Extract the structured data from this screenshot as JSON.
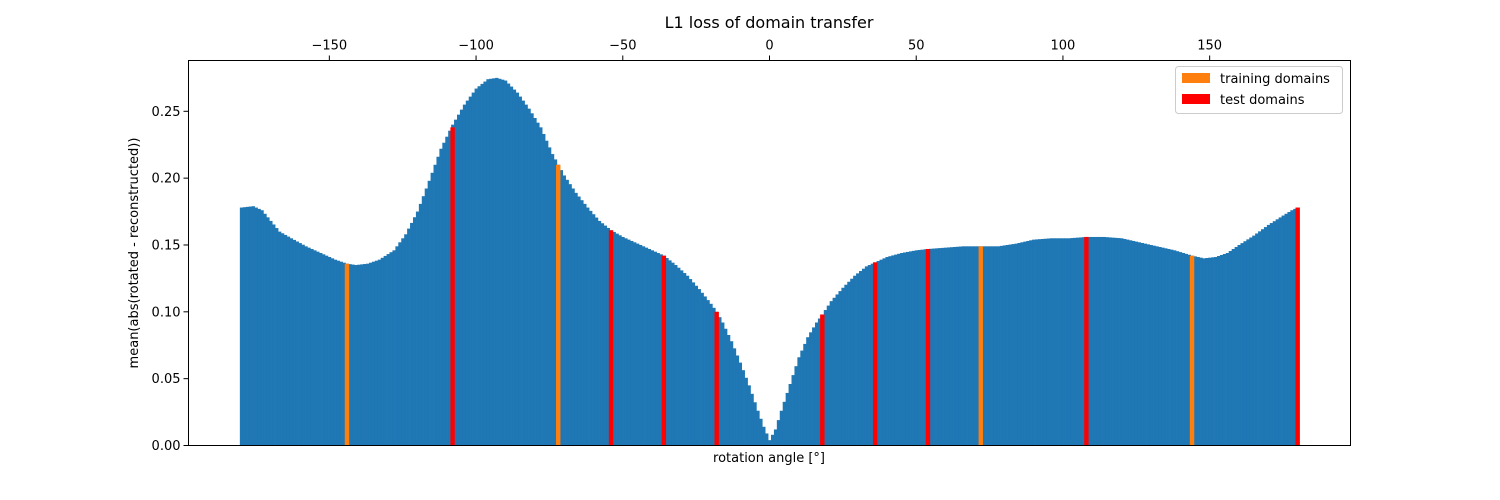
{
  "chart_data": {
    "type": "bar",
    "title": "L1 loss of domain transfer",
    "xlabel": "rotation angle [°]",
    "ylabel": "mean(abs(rotated - reconstructed))",
    "xlim": [
      -198,
      198
    ],
    "ylim": [
      0,
      0.288
    ],
    "x_ticks": [
      -150,
      -100,
      -50,
      0,
      50,
      100,
      150
    ],
    "x_tick_labels": [
      "−150",
      "−100",
      "−50",
      "0",
      "50",
      "100",
      "150"
    ],
    "y_ticks": [
      0.0,
      0.05,
      0.1,
      0.15,
      0.2,
      0.25
    ],
    "y_tick_labels": [
      "0.00",
      "0.05",
      "0.10",
      "0.15",
      "0.20",
      "0.25"
    ],
    "x_axis_position": "top",
    "grid": false,
    "legend_position": "top-right",
    "bar_width": 1,
    "curve_points": [
      [
        -180,
        0.178
      ],
      [
        -176,
        0.179
      ],
      [
        -173,
        0.176
      ],
      [
        -170,
        0.168
      ],
      [
        -167,
        0.16
      ],
      [
        -163,
        0.155
      ],
      [
        -158,
        0.149
      ],
      [
        -153,
        0.144
      ],
      [
        -148,
        0.139
      ],
      [
        -144,
        0.136
      ],
      [
        -141,
        0.135
      ],
      [
        -137,
        0.136
      ],
      [
        -133,
        0.139
      ],
      [
        -128,
        0.146
      ],
      [
        -124,
        0.158
      ],
      [
        -120,
        0.175
      ],
      [
        -116,
        0.198
      ],
      [
        -112,
        0.222
      ],
      [
        -108,
        0.24
      ],
      [
        -104,
        0.255
      ],
      [
        -100,
        0.267
      ],
      [
        -96,
        0.274
      ],
      [
        -93,
        0.275
      ],
      [
        -90,
        0.273
      ],
      [
        -86,
        0.264
      ],
      [
        -82,
        0.252
      ],
      [
        -78,
        0.238
      ],
      [
        -74,
        0.218
      ],
      [
        -70,
        0.202
      ],
      [
        -66,
        0.189
      ],
      [
        -62,
        0.178
      ],
      [
        -58,
        0.168
      ],
      [
        -54,
        0.161
      ],
      [
        -50,
        0.156
      ],
      [
        -45,
        0.151
      ],
      [
        -40,
        0.146
      ],
      [
        -36,
        0.142
      ],
      [
        -32,
        0.135
      ],
      [
        -28,
        0.127
      ],
      [
        -24,
        0.117
      ],
      [
        -20,
        0.106
      ],
      [
        -18,
        0.1
      ],
      [
        -16,
        0.092
      ],
      [
        -13,
        0.078
      ],
      [
        -10,
        0.062
      ],
      [
        -7,
        0.045
      ],
      [
        -4,
        0.026
      ],
      [
        -2,
        0.014
      ],
      [
        0,
        0.004
      ],
      [
        2,
        0.012
      ],
      [
        4,
        0.026
      ],
      [
        7,
        0.046
      ],
      [
        10,
        0.066
      ],
      [
        13,
        0.081
      ],
      [
        16,
        0.092
      ],
      [
        18,
        0.098
      ],
      [
        21,
        0.108
      ],
      [
        25,
        0.118
      ],
      [
        29,
        0.127
      ],
      [
        33,
        0.134
      ],
      [
        36,
        0.137
      ],
      [
        40,
        0.141
      ],
      [
        45,
        0.144
      ],
      [
        50,
        0.146
      ],
      [
        54,
        0.147
      ],
      [
        60,
        0.148
      ],
      [
        66,
        0.149
      ],
      [
        72,
        0.149
      ],
      [
        78,
        0.149
      ],
      [
        84,
        0.151
      ],
      [
        90,
        0.154
      ],
      [
        96,
        0.155
      ],
      [
        102,
        0.155
      ],
      [
        108,
        0.156
      ],
      [
        114,
        0.156
      ],
      [
        120,
        0.155
      ],
      [
        126,
        0.152
      ],
      [
        132,
        0.149
      ],
      [
        138,
        0.146
      ],
      [
        144,
        0.142
      ],
      [
        148,
        0.14
      ],
      [
        152,
        0.141
      ],
      [
        156,
        0.144
      ],
      [
        160,
        0.15
      ],
      [
        165,
        0.157
      ],
      [
        170,
        0.165
      ],
      [
        175,
        0.172
      ],
      [
        178,
        0.176
      ],
      [
        180,
        0.178
      ]
    ],
    "series": [
      {
        "name": "training domains",
        "color": "#ff7f0e",
        "x": [
          -144,
          -72,
          72,
          144
        ],
        "values": [
          0.136,
          0.21,
          0.149,
          0.142
        ]
      },
      {
        "name": "test domains",
        "color": "#ff0000",
        "x": [
          -108,
          -54,
          -36,
          -18,
          18,
          36,
          54,
          108,
          180
        ],
        "values": [
          0.238,
          0.161,
          0.142,
          0.1,
          0.098,
          0.137,
          0.147,
          0.156,
          0.178
        ]
      }
    ],
    "base_color": "#1f77b4"
  }
}
